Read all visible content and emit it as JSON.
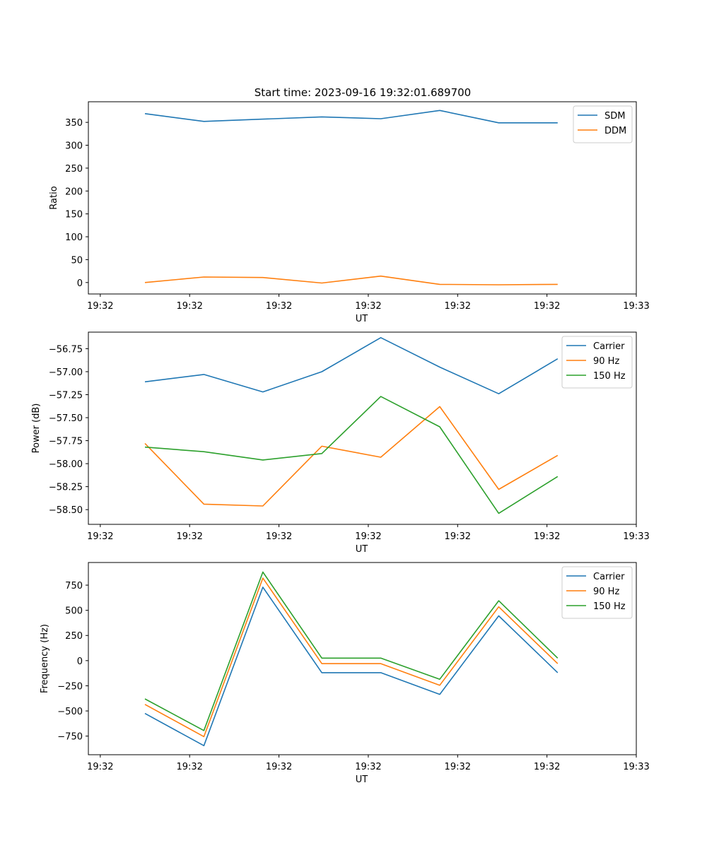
{
  "figure": {
    "title": "Start time: 2023-09-16 19:32:01.689700"
  },
  "chart_data": [
    {
      "type": "line",
      "xlabel": "UT",
      "ylabel": "Ratio",
      "ylim": [
        -25,
        395
      ],
      "yticks": [
        0,
        50,
        100,
        150,
        200,
        250,
        300,
        350
      ],
      "xlim": [
        -0.2,
        9.0
      ],
      "xtick_positions": [
        0,
        1.5,
        3,
        4.5,
        6,
        7.5,
        9
      ],
      "xtick_labels": [
        "19:32",
        "19:32",
        "19:32",
        "19:32",
        "19:32",
        "19:32",
        "19:33"
      ],
      "x": [
        0.75,
        1.74,
        2.73,
        3.72,
        4.71,
        5.7,
        6.69,
        7.68
      ],
      "legend_position": "top-right",
      "series": [
        {
          "name": "SDM",
          "color": "#1f77b4",
          "values": [
            369,
            352,
            357,
            362,
            358,
            376,
            349,
            349
          ]
        },
        {
          "name": "DDM",
          "color": "#ff7f0e",
          "values": [
            0,
            12,
            11,
            -1,
            14,
            -4,
            -5,
            -4
          ]
        }
      ]
    },
    {
      "type": "line",
      "xlabel": "UT",
      "ylabel": "Power (dB)",
      "ylim": [
        -58.66,
        -56.57
      ],
      "yticks": [
        -58.5,
        -58.25,
        -58.0,
        -57.75,
        -57.5,
        -57.25,
        -57.0,
        -56.75
      ],
      "ytick_labels": [
        "−58.50",
        "−58.25",
        "−58.00",
        "−57.75",
        "−57.50",
        "−57.25",
        "−57.00",
        "−56.75"
      ],
      "xlim": [
        -0.2,
        9.0
      ],
      "xtick_positions": [
        0,
        1.5,
        3,
        4.5,
        6,
        7.5,
        9
      ],
      "xtick_labels": [
        "19:32",
        "19:32",
        "19:32",
        "19:32",
        "19:32",
        "19:32",
        "19:33"
      ],
      "x": [
        0.75,
        1.74,
        2.73,
        3.72,
        4.71,
        5.7,
        6.69,
        7.68
      ],
      "legend_position": "top-right",
      "series": [
        {
          "name": "Carrier",
          "color": "#1f77b4",
          "values": [
            -57.11,
            -57.03,
            -57.22,
            -57.0,
            -56.63,
            -56.95,
            -57.24,
            -56.86
          ]
        },
        {
          "name": "90 Hz",
          "color": "#ff7f0e",
          "values": [
            -57.78,
            -58.44,
            -58.46,
            -57.81,
            -57.93,
            -57.38,
            -58.28,
            -57.91
          ]
        },
        {
          "name": "150 Hz",
          "color": "#2ca02c",
          "values": [
            -57.82,
            -57.87,
            -57.96,
            -57.89,
            -57.27,
            -57.6,
            -58.54,
            -58.14
          ]
        }
      ]
    },
    {
      "type": "line",
      "xlabel": "UT",
      "ylabel": "Frequency (Hz)",
      "ylim": [
        -935,
        975
      ],
      "yticks": [
        -750,
        -500,
        -250,
        0,
        250,
        500,
        750
      ],
      "ytick_labels": [
        "−750",
        "−500",
        "−250",
        "0",
        "250",
        "500",
        "750"
      ],
      "xlim": [
        -0.2,
        9.0
      ],
      "xtick_positions": [
        0,
        1.5,
        3,
        4.5,
        6,
        7.5,
        9
      ],
      "xtick_labels": [
        "19:32",
        "19:32",
        "19:32",
        "19:32",
        "19:32",
        "19:32",
        "19:33"
      ],
      "x": [
        0.75,
        1.74,
        2.73,
        3.72,
        4.71,
        5.7,
        6.69,
        7.68
      ],
      "legend_position": "top-right",
      "series": [
        {
          "name": "Carrier",
          "color": "#1f77b4",
          "values": [
            -525,
            -845,
            730,
            -120,
            -120,
            -335,
            445,
            -120
          ]
        },
        {
          "name": "90 Hz",
          "color": "#ff7f0e",
          "values": [
            -435,
            -755,
            820,
            -30,
            -30,
            -245,
            535,
            -30
          ]
        },
        {
          "name": "150 Hz",
          "color": "#2ca02c",
          "values": [
            -380,
            -695,
            880,
            25,
            25,
            -185,
            595,
            25
          ]
        }
      ]
    }
  ]
}
